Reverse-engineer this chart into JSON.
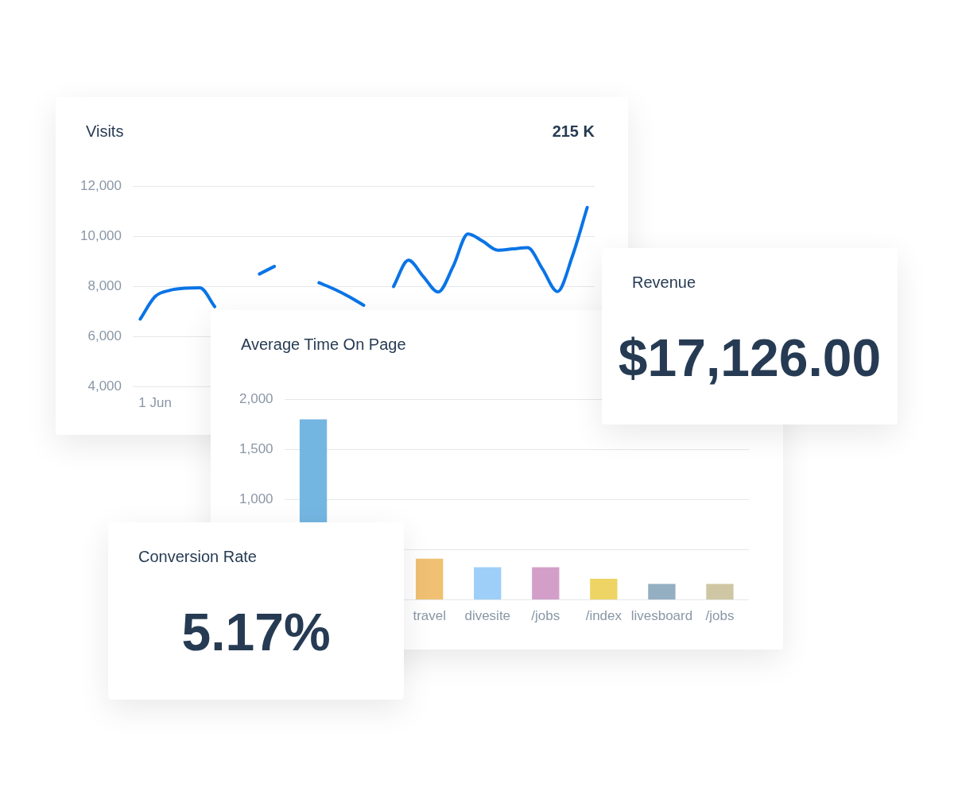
{
  "chart_data": [
    {
      "type": "line",
      "title": "Visits",
      "annotations": [
        "215 K"
      ],
      "categories": [
        null,
        "1 Jun",
        null,
        null,
        null,
        null,
        null,
        null,
        null,
        null,
        null,
        null,
        null,
        null,
        null,
        null,
        null,
        null,
        null,
        null,
        null,
        null,
        null,
        null,
        null,
        null,
        null,
        null,
        null,
        null,
        null
      ],
      "series": [
        {
          "color": "#0a74e6",
          "values": [
            6700,
            7600,
            7850,
            7930,
            7950,
            7200,
            null,
            null,
            8500,
            8800,
            null,
            null,
            8150,
            7900,
            7600,
            7250,
            null,
            8000,
            9050,
            8400,
            7780,
            8800,
            10100,
            9800,
            9450,
            9500,
            9550,
            8700,
            7800,
            9200,
            11150
          ]
        }
      ],
      "ylim": [
        4000,
        12000
      ],
      "yticks": [
        {
          "value": 4000,
          "label": "4,000"
        },
        {
          "value": 6000,
          "label": "6,000"
        },
        {
          "value": 8000,
          "label": "8,000"
        },
        {
          "value": 10000,
          "label": "10,000"
        },
        {
          "value": 12000,
          "label": "12,000"
        }
      ],
      "grid": "y"
    },
    {
      "type": "other",
      "title": "Revenue",
      "annotations": [
        "$17,126.00"
      ]
    },
    {
      "type": "bar",
      "title": "Average Time On Page",
      "categories": [
        null,
        null,
        "travel",
        "divesite",
        "/jobs",
        "/index",
        "livesboard",
        "/jobs"
      ],
      "values": [
        1800,
        null,
        410,
        325,
        325,
        210,
        160,
        160
      ],
      "colors": [
        "#74b6e2",
        null,
        "#f0c173",
        "#9dcff8",
        "#d39fc9",
        "#edd465",
        "#94aec2",
        "#cfc6a3"
      ],
      "ylim": [
        0,
        2000
      ],
      "yticks": [
        {
          "value": 0,
          "label": null
        },
        {
          "value": 500,
          "label": null
        },
        {
          "value": 1000,
          "label": "1,000"
        },
        {
          "value": 1500,
          "label": "1,500"
        },
        {
          "value": 2000,
          "label": "2,000"
        }
      ],
      "grid": "y"
    },
    {
      "type": "other",
      "title": "Conversion Rate",
      "annotations": [
        "5.17%"
      ]
    }
  ]
}
